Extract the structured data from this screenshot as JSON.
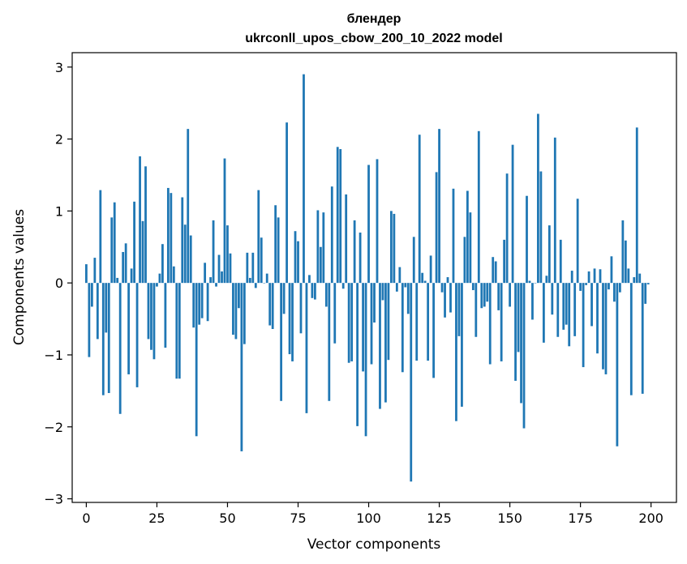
{
  "chart_data": {
    "type": "bar",
    "title_line1": "блендер",
    "title_line2": "ukrconll_upos_cbow_200_10_2022 model",
    "xlabel": "Vector components",
    "ylabel": "Components values",
    "xlim": [
      -5,
      209
    ],
    "ylim": [
      -3.05,
      3.2
    ],
    "x_ticks": [
      0,
      25,
      50,
      75,
      100,
      125,
      150,
      175,
      200
    ],
    "x_tick_labels": [
      "0",
      "25",
      "50",
      "75",
      "100",
      "125",
      "150",
      "175",
      "200"
    ],
    "y_ticks": [
      -3,
      -2,
      -1,
      0,
      1,
      2,
      3
    ],
    "y_tick_labels": [
      "−3",
      "−2",
      "−1",
      "0",
      "1",
      "2",
      "3"
    ],
    "bar_color": "#1f77b4",
    "values": [
      0.26,
      -1.03,
      -0.33,
      0.35,
      -0.78,
      1.29,
      -1.56,
      -0.69,
      -1.53,
      0.91,
      1.12,
      0.07,
      -1.82,
      0.43,
      0.55,
      -1.27,
      0.2,
      1.13,
      -1.45,
      1.76,
      0.86,
      1.62,
      -0.78,
      -0.93,
      -1.06,
      -0.05,
      0.13,
      0.54,
      -0.9,
      1.32,
      1.25,
      0.23,
      -1.33,
      -1.33,
      1.19,
      0.81,
      2.14,
      0.66,
      -0.62,
      -2.13,
      -0.58,
      -0.49,
      0.28,
      -0.53,
      0.08,
      0.87,
      -0.05,
      0.39,
      0.16,
      1.73,
      0.8,
      0.41,
      -0.72,
      -0.78,
      -0.35,
      -2.34,
      -0.85,
      0.42,
      0.07,
      0.42,
      -0.07,
      1.29,
      0.63,
      0.0,
      0.13,
      -0.59,
      -0.64,
      1.08,
      0.91,
      -1.64,
      -0.43,
      2.23,
      -0.99,
      -1.09,
      0.72,
      0.58,
      -0.7,
      2.9,
      -1.81,
      0.11,
      -0.21,
      -0.23,
      1.01,
      0.5,
      0.98,
      -0.33,
      -1.64,
      1.34,
      -0.84,
      1.89,
      1.86,
      -0.08,
      1.23,
      -1.11,
      -1.09,
      0.87,
      -1.99,
      0.7,
      -1.23,
      -2.13,
      1.64,
      -1.13,
      -0.55,
      1.72,
      -1.75,
      -0.24,
      -1.66,
      -1.07,
      1.0,
      0.96,
      -0.12,
      0.22,
      -1.24,
      -0.06,
      -0.43,
      -2.76,
      0.64,
      -1.08,
      2.06,
      0.14,
      0.03,
      -1.08,
      0.38,
      -1.32,
      1.54,
      2.14,
      -0.13,
      -0.48,
      0.08,
      -0.41,
      1.31,
      -1.92,
      -0.74,
      -1.72,
      0.64,
      1.28,
      0.98,
      -0.1,
      -0.75,
      2.11,
      -0.35,
      -0.33,
      -0.26,
      -1.13,
      0.36,
      0.3,
      -0.38,
      -1.09,
      0.6,
      1.52,
      -0.33,
      1.92,
      -1.36,
      -0.96,
      -1.67,
      -2.02,
      1.21,
      0.03,
      -0.51,
      0.0,
      2.35,
      1.55,
      -0.83,
      0.1,
      0.8,
      -0.44,
      2.02,
      -0.75,
      0.6,
      -0.65,
      -0.58,
      -0.88,
      0.17,
      -0.74,
      1.17,
      -0.11,
      -1.17,
      -0.03,
      0.16,
      -0.6,
      0.2,
      -0.98,
      0.19,
      -1.2,
      -1.27,
      -0.09,
      0.37,
      -0.26,
      -2.27,
      -0.13,
      0.87,
      0.59,
      0.2,
      -1.56,
      0.08,
      2.16,
      0.13,
      -1.54,
      -0.29,
      -0.02
    ]
  }
}
